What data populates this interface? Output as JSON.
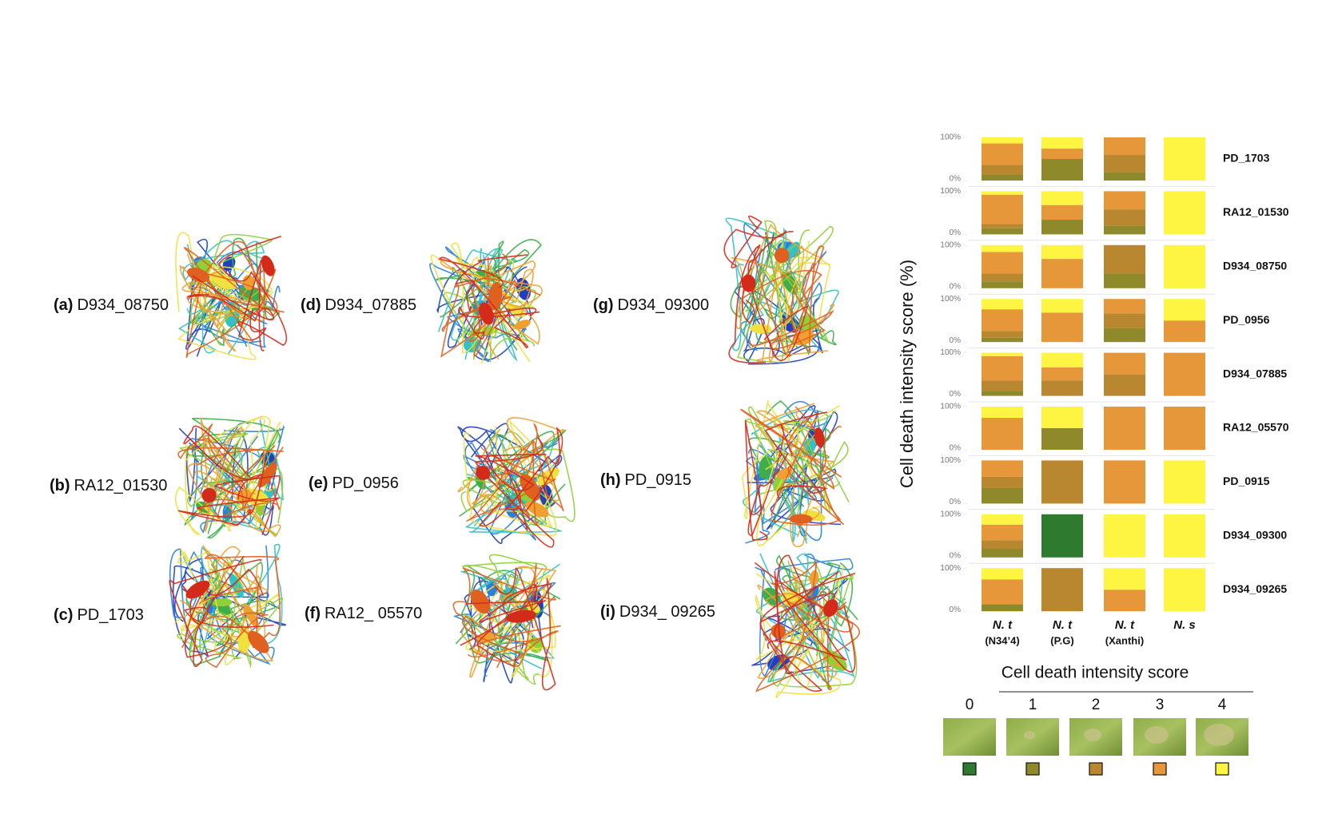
{
  "panels": [
    {
      "letter": "(a)",
      "name": "D934_08750"
    },
    {
      "letter": "(b)",
      "name": "RA12_01530"
    },
    {
      "letter": "(c)",
      "name": "PD_1703"
    },
    {
      "letter": "(d)",
      "name": "D934_07885"
    },
    {
      "letter": "(e)",
      "name": "PD_0956"
    },
    {
      "letter": "(f)",
      "name": "RA12_ 05570"
    },
    {
      "letter": "(g)",
      "name": "D934_09300"
    },
    {
      "letter": "(h)",
      "name": "PD_0915"
    },
    {
      "letter": "(i)",
      "name": "D934_ 09265"
    }
  ],
  "chart_data": {
    "type": "bar",
    "y_label": "Cell death intensity score (%)",
    "legend_title": "Cell death intensity score",
    "rows": [
      "PD_1703",
      "RA12_01530",
      "D934_08750",
      "PD_0956",
      "D934_07885",
      "RA12_05570",
      "PD_0915",
      "D934_09300",
      "D934_09265"
    ],
    "categories": [
      "N. t",
      "N. t",
      "N. t",
      "N. s"
    ],
    "category_sublabels": [
      "(N34’4)",
      "(P.G)",
      "(Xanthi)",
      null
    ],
    "ylim": [
      0,
      100
    ],
    "yticks": [
      {
        "value": 0,
        "label": "0%"
      },
      {
        "value": 100,
        "label": "100%"
      }
    ],
    "series": [
      {
        "name": "0",
        "color": "#2e7a2e",
        "values": [
          [
            0,
            0,
            0,
            0
          ],
          [
            0,
            0,
            0,
            0
          ],
          [
            0,
            0,
            0,
            0
          ],
          [
            0,
            0,
            0,
            0
          ],
          [
            0,
            0,
            0,
            0
          ],
          [
            0,
            0,
            0,
            0
          ],
          [
            0,
            0,
            0,
            0
          ],
          [
            0,
            100,
            0,
            0
          ],
          [
            0,
            0,
            0,
            0
          ]
        ]
      },
      {
        "name": "1",
        "color": "#8e8a2c",
        "values": [
          [
            14,
            50,
            20,
            0
          ],
          [
            14,
            34,
            20,
            0
          ],
          [
            16,
            0,
            34,
            0
          ],
          [
            10,
            0,
            32,
            0
          ],
          [
            12,
            0,
            0,
            0
          ],
          [
            0,
            50,
            0,
            0
          ],
          [
            36,
            0,
            0,
            0
          ],
          [
            20,
            0,
            0,
            0
          ],
          [
            16,
            0,
            0,
            0
          ]
        ]
      },
      {
        "name": "2",
        "color": "#b8872f",
        "values": [
          [
            22,
            0,
            40,
            0
          ],
          [
            10,
            0,
            38,
            0
          ],
          [
            18,
            0,
            66,
            0
          ],
          [
            16,
            0,
            34,
            0
          ],
          [
            24,
            36,
            50,
            0
          ],
          [
            0,
            0,
            0,
            0
          ],
          [
            26,
            100,
            0,
            0
          ],
          [
            20,
            0,
            0,
            0
          ],
          [
            0,
            100,
            0,
            0
          ]
        ]
      },
      {
        "name": "3",
        "color": "#e6973a",
        "values": [
          [
            50,
            24,
            40,
            0
          ],
          [
            68,
            34,
            42,
            0
          ],
          [
            50,
            68,
            0,
            0
          ],
          [
            50,
            68,
            34,
            50
          ],
          [
            56,
            30,
            50,
            100
          ],
          [
            74,
            0,
            100,
            100
          ],
          [
            38,
            0,
            100,
            0
          ],
          [
            36,
            0,
            0,
            0
          ],
          [
            58,
            0,
            50,
            0
          ]
        ]
      },
      {
        "name": "4",
        "color": "#fdf542",
        "values": [
          [
            14,
            26,
            0,
            100
          ],
          [
            8,
            32,
            0,
            100
          ],
          [
            16,
            32,
            0,
            100
          ],
          [
            24,
            32,
            0,
            50
          ],
          [
            8,
            34,
            0,
            0
          ],
          [
            26,
            50,
            0,
            0
          ],
          [
            0,
            0,
            0,
            100
          ],
          [
            24,
            0,
            100,
            100
          ],
          [
            26,
            0,
            50,
            100
          ]
        ]
      }
    ]
  }
}
